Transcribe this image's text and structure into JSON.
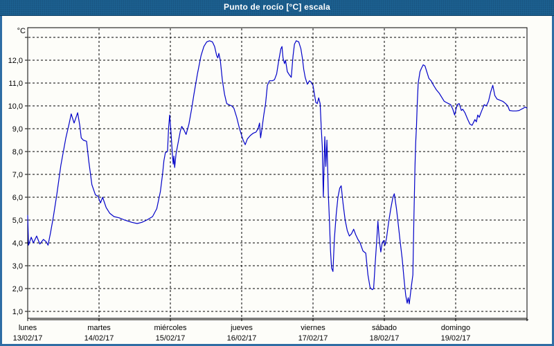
{
  "window": {
    "title": "Punto de rocío [°C] escala"
  },
  "colors": {
    "titlebar_bg": "#1d6394",
    "titlebar_text": "#ffffff",
    "window_border": "#2e6da4",
    "content_bg": "#fdfdf9",
    "plot_bg": "#fdfdf9",
    "grid": "#000000",
    "text": "#000000",
    "line": "#0000c8"
  },
  "chart_data": {
    "type": "line",
    "title": "Punto de rocío [°C] escala",
    "y_unit": "°C",
    "grid": "dashed",
    "legend": "none",
    "ylim": [
      0.7,
      13.4
    ],
    "y_grid_values": [
      1,
      2,
      3,
      4,
      5,
      6,
      7,
      8,
      9,
      10,
      11,
      12,
      13
    ],
    "y_ticks": [
      {
        "value": 12,
        "label": "12,0"
      },
      {
        "value": 11,
        "label": "11,0"
      },
      {
        "value": 10,
        "label": "10,0"
      },
      {
        "value": 9,
        "label": "9,0"
      },
      {
        "value": 8,
        "label": "8,0"
      },
      {
        "value": 7,
        "label": "7,0"
      },
      {
        "value": 6,
        "label": "6,0"
      },
      {
        "value": 5,
        "label": "5,0"
      },
      {
        "value": 4,
        "label": "4,0"
      },
      {
        "value": 3,
        "label": "3,0"
      },
      {
        "value": 2,
        "label": "2,0"
      },
      {
        "value": 1,
        "label": "1,0"
      }
    ],
    "x_range_days": [
      0,
      7
    ],
    "x_days": [
      {
        "name": "lunes",
        "date": "13/02/17"
      },
      {
        "name": "martes",
        "date": "14/02/17"
      },
      {
        "name": "miércoles",
        "date": "15/02/17"
      },
      {
        "name": "jueves",
        "date": "16/02/17"
      },
      {
        "name": "viernes",
        "date": "17/02/17"
      },
      {
        "name": "sábado",
        "date": "18/02/17"
      },
      {
        "name": "domingo",
        "date": "19/02/17"
      }
    ],
    "series": [
      {
        "name": "Punto de rocío",
        "points": [
          [
            0.0,
            5.2
          ],
          [
            0.012,
            3.9
          ],
          [
            0.05,
            4.25
          ],
          [
            0.08,
            4.0
          ],
          [
            0.125,
            4.3
          ],
          [
            0.17,
            3.95
          ],
          [
            0.22,
            4.15
          ],
          [
            0.26,
            4.05
          ],
          [
            0.285,
            3.9
          ],
          [
            0.32,
            4.45
          ],
          [
            0.36,
            5.15
          ],
          [
            0.41,
            6.15
          ],
          [
            0.465,
            7.4
          ],
          [
            0.535,
            8.6
          ],
          [
            0.58,
            9.2
          ],
          [
            0.61,
            9.65
          ],
          [
            0.65,
            9.25
          ],
          [
            0.7,
            9.7
          ],
          [
            0.73,
            9.15
          ],
          [
            0.75,
            8.6
          ],
          [
            0.78,
            8.5
          ],
          [
            0.825,
            8.45
          ],
          [
            0.855,
            7.6
          ],
          [
            0.9,
            6.55
          ],
          [
            0.95,
            6.1
          ],
          [
            0.985,
            6.05
          ],
          [
            1.02,
            5.75
          ],
          [
            1.05,
            6.0
          ],
          [
            1.1,
            5.55
          ],
          [
            1.15,
            5.3
          ],
          [
            1.21,
            5.15
          ],
          [
            1.28,
            5.1
          ],
          [
            1.36,
            5.0
          ],
          [
            1.46,
            4.9
          ],
          [
            1.535,
            4.85
          ],
          [
            1.6,
            4.9
          ],
          [
            1.67,
            5.0
          ],
          [
            1.75,
            5.15
          ],
          [
            1.81,
            5.5
          ],
          [
            1.86,
            6.25
          ],
          [
            1.89,
            7.0
          ],
          [
            1.91,
            7.6
          ],
          [
            1.93,
            7.95
          ],
          [
            1.96,
            8.0
          ],
          [
            1.975,
            9.0
          ],
          [
            1.99,
            9.6
          ],
          [
            2.01,
            8.8
          ],
          [
            2.03,
            7.8
          ],
          [
            2.04,
            7.45
          ],
          [
            2.05,
            7.8
          ],
          [
            2.06,
            7.3
          ],
          [
            2.08,
            7.9
          ],
          [
            2.11,
            8.4
          ],
          [
            2.14,
            8.9
          ],
          [
            2.16,
            9.1
          ],
          [
            2.19,
            8.95
          ],
          [
            2.22,
            8.75
          ],
          [
            2.26,
            9.2
          ],
          [
            2.3,
            9.9
          ],
          [
            2.33,
            10.5
          ],
          [
            2.38,
            11.4
          ],
          [
            2.43,
            12.2
          ],
          [
            2.47,
            12.6
          ],
          [
            2.51,
            12.8
          ],
          [
            2.55,
            12.85
          ],
          [
            2.59,
            12.8
          ],
          [
            2.62,
            12.6
          ],
          [
            2.65,
            12.2
          ],
          [
            2.665,
            12.1
          ],
          [
            2.68,
            12.3
          ],
          [
            2.7,
            12.0
          ],
          [
            2.73,
            11.1
          ],
          [
            2.76,
            10.5
          ],
          [
            2.79,
            10.1
          ],
          [
            2.82,
            10.05
          ],
          [
            2.86,
            10.0
          ],
          [
            2.89,
            9.9
          ],
          [
            2.93,
            9.5
          ],
          [
            2.97,
            9.0
          ],
          [
            3.0,
            8.7
          ],
          [
            3.02,
            8.5
          ],
          [
            3.05,
            8.3
          ],
          [
            3.08,
            8.55
          ],
          [
            3.12,
            8.7
          ],
          [
            3.16,
            8.8
          ],
          [
            3.2,
            8.85
          ],
          [
            3.23,
            9.0
          ],
          [
            3.25,
            9.25
          ],
          [
            3.265,
            8.6
          ],
          [
            3.28,
            8.9
          ],
          [
            3.31,
            9.6
          ],
          [
            3.335,
            10.1
          ],
          [
            3.36,
            10.9
          ],
          [
            3.39,
            11.1
          ],
          [
            3.43,
            11.1
          ],
          [
            3.46,
            11.15
          ],
          [
            3.49,
            11.4
          ],
          [
            3.52,
            12.0
          ],
          [
            3.55,
            12.5
          ],
          [
            3.565,
            12.6
          ],
          [
            3.58,
            12.1
          ],
          [
            3.6,
            11.85
          ],
          [
            3.615,
            12.0
          ],
          [
            3.64,
            11.5
          ],
          [
            3.67,
            11.35
          ],
          [
            3.695,
            11.25
          ],
          [
            3.72,
            12.2
          ],
          [
            3.74,
            12.7
          ],
          [
            3.765,
            12.85
          ],
          [
            3.8,
            12.8
          ],
          [
            3.83,
            12.5
          ],
          [
            3.85,
            12.1
          ],
          [
            3.87,
            11.6
          ],
          [
            3.89,
            11.25
          ],
          [
            3.92,
            10.95
          ],
          [
            3.95,
            11.1
          ],
          [
            3.97,
            11.05
          ],
          [
            4.0,
            10.9
          ],
          [
            4.02,
            10.5
          ],
          [
            4.04,
            10.15
          ],
          [
            4.06,
            10.1
          ],
          [
            4.08,
            10.35
          ],
          [
            4.1,
            10.1
          ],
          [
            4.115,
            9.1
          ],
          [
            4.13,
            8.2
          ],
          [
            4.145,
            6.0
          ],
          [
            4.165,
            8.65
          ],
          [
            4.18,
            7.35
          ],
          [
            4.195,
            8.5
          ],
          [
            4.215,
            6.15
          ],
          [
            4.23,
            5.0
          ],
          [
            4.245,
            3.7
          ],
          [
            4.26,
            2.9
          ],
          [
            4.28,
            2.75
          ],
          [
            4.3,
            4.2
          ],
          [
            4.325,
            5.25
          ],
          [
            4.35,
            6.0
          ],
          [
            4.375,
            6.4
          ],
          [
            4.395,
            6.5
          ],
          [
            4.42,
            5.75
          ],
          [
            4.45,
            5.0
          ],
          [
            4.48,
            4.55
          ],
          [
            4.51,
            4.3
          ],
          [
            4.54,
            4.4
          ],
          [
            4.57,
            4.6
          ],
          [
            4.6,
            4.35
          ],
          [
            4.63,
            4.15
          ],
          [
            4.66,
            4.0
          ],
          [
            4.7,
            3.65
          ],
          [
            4.74,
            3.55
          ],
          [
            4.77,
            2.6
          ],
          [
            4.8,
            2.05
          ],
          [
            4.83,
            1.95
          ],
          [
            4.85,
            2.0
          ],
          [
            4.87,
            3.0
          ],
          [
            4.895,
            4.2
          ],
          [
            4.91,
            4.95
          ],
          [
            4.93,
            4.1
          ],
          [
            4.95,
            3.6
          ],
          [
            4.97,
            4.0
          ],
          [
            4.99,
            4.1
          ],
          [
            5.01,
            3.9
          ],
          [
            5.03,
            4.2
          ],
          [
            5.06,
            4.9
          ],
          [
            5.09,
            5.5
          ],
          [
            5.12,
            6.0
          ],
          [
            5.14,
            6.15
          ],
          [
            5.17,
            5.5
          ],
          [
            5.19,
            4.95
          ],
          [
            5.22,
            4.1
          ],
          [
            5.25,
            3.3
          ],
          [
            5.28,
            2.3
          ],
          [
            5.3,
            1.7
          ],
          [
            5.32,
            1.36
          ],
          [
            5.335,
            1.6
          ],
          [
            5.35,
            1.33
          ],
          [
            5.375,
            2.0
          ],
          [
            5.4,
            2.6
          ],
          [
            5.415,
            5.1
          ],
          [
            5.43,
            7.4
          ],
          [
            5.44,
            8.4
          ],
          [
            5.45,
            9.1
          ],
          [
            5.46,
            10.0
          ],
          [
            5.475,
            11.0
          ],
          [
            5.5,
            11.5
          ],
          [
            5.52,
            11.65
          ],
          [
            5.545,
            11.8
          ],
          [
            5.57,
            11.75
          ],
          [
            5.6,
            11.45
          ],
          [
            5.625,
            11.2
          ],
          [
            5.655,
            11.1
          ],
          [
            5.69,
            10.9
          ],
          [
            5.73,
            10.7
          ],
          [
            5.77,
            10.55
          ],
          [
            5.81,
            10.35
          ],
          [
            5.84,
            10.2
          ],
          [
            5.87,
            10.15
          ],
          [
            5.9,
            10.1
          ],
          [
            5.93,
            10.05
          ],
          [
            5.96,
            9.85
          ],
          [
            5.985,
            9.6
          ],
          [
            6.02,
            10.05
          ],
          [
            6.05,
            10.1
          ],
          [
            6.08,
            9.8
          ],
          [
            6.1,
            9.85
          ],
          [
            6.13,
            9.7
          ],
          [
            6.17,
            9.4
          ],
          [
            6.2,
            9.2
          ],
          [
            6.23,
            9.15
          ],
          [
            6.27,
            9.4
          ],
          [
            6.29,
            9.3
          ],
          [
            6.31,
            9.6
          ],
          [
            6.33,
            9.5
          ],
          [
            6.36,
            9.75
          ],
          [
            6.4,
            10.05
          ],
          [
            6.43,
            10.0
          ],
          [
            6.46,
            10.2
          ],
          [
            6.49,
            10.6
          ],
          [
            6.52,
            10.9
          ],
          [
            6.55,
            10.45
          ],
          [
            6.58,
            10.3
          ],
          [
            6.62,
            10.25
          ],
          [
            6.66,
            10.2
          ],
          [
            6.7,
            10.1
          ],
          [
            6.73,
            10.0
          ],
          [
            6.755,
            9.8
          ],
          [
            6.8,
            9.78
          ],
          [
            6.85,
            9.78
          ],
          [
            6.89,
            9.8
          ],
          [
            6.92,
            9.85
          ],
          [
            6.95,
            9.9
          ],
          [
            6.975,
            9.95
          ],
          [
            7.0,
            9.9
          ]
        ]
      }
    ]
  }
}
